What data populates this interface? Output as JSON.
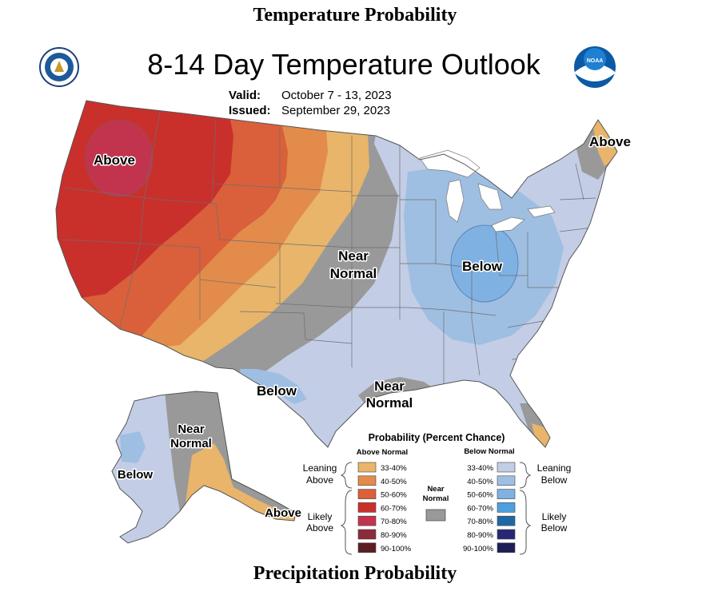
{
  "headings": {
    "top": "Temperature Probability",
    "bottom": "Precipitation Probability"
  },
  "map": {
    "title": "8-14 Day Temperature Outlook",
    "valid_label": "Valid:",
    "valid_value": "October 7 - 13, 2023",
    "issued_label": "Issued:",
    "issued_value": "September 29, 2023",
    "logos": [
      "doc-seal-icon",
      "noaa-logo-icon"
    ],
    "noaa_logo_text": "NOAA",
    "region_labels": [
      {
        "text": "Above",
        "region": "pacific-northwest"
      },
      {
        "text": "Above",
        "region": "maine"
      },
      {
        "text": "Near",
        "text2": "Normal",
        "region": "northern-plains"
      },
      {
        "text": "Below",
        "region": "ohio-valley"
      },
      {
        "text": "Below",
        "region": "west-texas"
      },
      {
        "text": "Near",
        "text2": "Normal",
        "region": "gulf-coast"
      },
      {
        "text": "Near",
        "text2": "Normal",
        "region": "alaska-interior"
      },
      {
        "text": "Below",
        "region": "western-alaska"
      },
      {
        "text": "Above",
        "region": "alaska-peninsula"
      }
    ]
  },
  "legend": {
    "title": "Probability (Percent Chance)",
    "above_header": "Above Normal",
    "below_header": "Below Normal",
    "near_label_1": "Near",
    "near_label_2": "Normal",
    "near_color": "#999999",
    "groups": {
      "leaning_above_1": "Leaning",
      "leaning_above_2": "Above",
      "likely_above_1": "Likely",
      "likely_above_2": "Above",
      "leaning_below_1": "Leaning",
      "leaning_below_2": "Below",
      "likely_below_1": "Likely",
      "likely_below_2": "Below"
    },
    "above": [
      {
        "range": "33-40%",
        "color": "#E8B56A"
      },
      {
        "range": "40-50%",
        "color": "#E38B4B"
      },
      {
        "range": "50-60%",
        "color": "#D9603A"
      },
      {
        "range": "60-70%",
        "color": "#C9302B"
      },
      {
        "range": "70-80%",
        "color": "#C2344E"
      },
      {
        "range": "80-90%",
        "color": "#8A2C3A"
      },
      {
        "range": "90-100%",
        "color": "#5C1E24"
      }
    ],
    "below": [
      {
        "range": "33-40%",
        "color": "#C4CDE6"
      },
      {
        "range": "40-50%",
        "color": "#9EBFE2"
      },
      {
        "range": "50-60%",
        "color": "#7FB1E3"
      },
      {
        "range": "60-70%",
        "color": "#4E9FDE"
      },
      {
        "range": "70-80%",
        "color": "#1F68A6"
      },
      {
        "range": "80-90%",
        "color": "#262874"
      },
      {
        "range": "90-100%",
        "color": "#1E1E56"
      }
    ]
  }
}
